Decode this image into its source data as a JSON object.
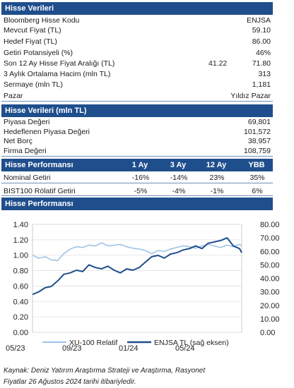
{
  "section1": {
    "title": "Hisse Verileri",
    "rows": [
      {
        "label": "Bloomberg Hisse Kodu",
        "value": "ENJSA"
      },
      {
        "label": "Mevcut Fiyat (TL)",
        "value": "59.10"
      },
      {
        "label": "Hedef Fiyat (TL)",
        "value": "86.00"
      },
      {
        "label": "Getiri Potansiyeli (%)",
        "value": "46%"
      },
      {
        "label": "Son 12 Ay Hisse Fiyat Aralığı (TL)",
        "mid": "41.22",
        "value": "71.80"
      },
      {
        "label": "3 Aylık Ortalama Hacim (mln TL)",
        "value": "313"
      },
      {
        "label": "Sermaye (mln TL)",
        "value": "1,181"
      },
      {
        "label": "Pazar",
        "value": "Yıldız Pazar"
      }
    ]
  },
  "section2": {
    "title": "Hisse Verileri (mln TL)",
    "rows": [
      {
        "label": "Piyasa Değeri",
        "value": "69,801"
      },
      {
        "label": "Hedeflenen Piyasa Değeri",
        "value": "101,572"
      },
      {
        "label": "Net Borç",
        "value": "38,957"
      },
      {
        "label": "Firma Değeri",
        "value": "108,759"
      }
    ]
  },
  "section3": {
    "title": "Hisse Performansı",
    "columns": [
      "1 Ay",
      "3 Ay",
      "12 Ay",
      "YBB"
    ],
    "rows": [
      {
        "label": "Nominal Getiri",
        "values": [
          "-16%",
          "-14%",
          "23%",
          "35%"
        ]
      },
      {
        "label": "BIST100 Rölatif Getiri",
        "values": [
          "-5%",
          "-4%",
          "-1%",
          "6%"
        ]
      }
    ]
  },
  "section4": {
    "title": "Hisse Performansı"
  },
  "chart_data": {
    "type": "line",
    "x_labels": [
      "05/23",
      "09/23",
      "01/24",
      "05/24"
    ],
    "y_left_ticks": [
      "0.00",
      "0.20",
      "0.40",
      "0.60",
      "0.80",
      "1.00",
      "1.20",
      "1.40"
    ],
    "y_right_ticks": [
      "0.00",
      "10.00",
      "20.00",
      "30.00",
      "40.00",
      "50.00",
      "60.00",
      "70.00",
      "80.00"
    ],
    "ylim_left": [
      0,
      1.4
    ],
    "ylim_right": [
      0,
      80
    ],
    "grid": true,
    "legend_position": "bottom",
    "series": [
      {
        "name": "XU-100 Relatif",
        "axis": "left",
        "color": "#9ec3e6",
        "points": [
          [
            0,
            1.0
          ],
          [
            3,
            0.96
          ],
          [
            6,
            0.98
          ],
          [
            9,
            0.94
          ],
          [
            12,
            0.93
          ],
          [
            15,
            1.02
          ],
          [
            18,
            1.08
          ],
          [
            21,
            1.11
          ],
          [
            24,
            1.1
          ],
          [
            27,
            1.13
          ],
          [
            30,
            1.12
          ],
          [
            33,
            1.16
          ],
          [
            36,
            1.12
          ],
          [
            39,
            1.13
          ],
          [
            42,
            1.14
          ],
          [
            45,
            1.11
          ],
          [
            48,
            1.09
          ],
          [
            51,
            1.08
          ],
          [
            54,
            1.06
          ],
          [
            57,
            1.02
          ],
          [
            60,
            1.06
          ],
          [
            63,
            1.05
          ],
          [
            66,
            1.08
          ],
          [
            69,
            1.1
          ],
          [
            72,
            1.12
          ],
          [
            75,
            1.11
          ],
          [
            78,
            1.09
          ],
          [
            81,
            1.12
          ],
          [
            84,
            1.14
          ],
          [
            87,
            1.12
          ],
          [
            90,
            1.1
          ],
          [
            93,
            1.13
          ],
          [
            96,
            1.11
          ],
          [
            99,
            1.14
          ],
          [
            100,
            1.12
          ]
        ]
      },
      {
        "name": "ENJSA TL (sağ eksen)",
        "axis": "right",
        "color": "#1f4e8c",
        "points": [
          [
            0,
            28
          ],
          [
            3,
            30
          ],
          [
            6,
            33
          ],
          [
            9,
            34
          ],
          [
            12,
            38
          ],
          [
            15,
            43
          ],
          [
            18,
            44
          ],
          [
            21,
            46
          ],
          [
            24,
            45
          ],
          [
            27,
            50
          ],
          [
            30,
            48
          ],
          [
            33,
            47
          ],
          [
            36,
            49
          ],
          [
            39,
            46
          ],
          [
            42,
            44
          ],
          [
            45,
            47
          ],
          [
            48,
            46
          ],
          [
            51,
            48
          ],
          [
            54,
            52
          ],
          [
            57,
            56
          ],
          [
            60,
            57
          ],
          [
            63,
            55
          ],
          [
            66,
            58
          ],
          [
            69,
            59
          ],
          [
            72,
            61
          ],
          [
            75,
            62
          ],
          [
            78,
            64
          ],
          [
            81,
            62
          ],
          [
            84,
            66
          ],
          [
            87,
            67
          ],
          [
            90,
            68
          ],
          [
            93,
            70
          ],
          [
            96,
            64
          ],
          [
            99,
            62
          ],
          [
            100,
            59
          ]
        ]
      }
    ]
  },
  "footer": {
    "source_line1": "Kaynak: Deniz Yatırım Araştırma Strateji ve Araştırma, Rasyonet",
    "source_line2": "Fiyatlar 26 Ağustos 2024 tarihi itibariyledir."
  }
}
